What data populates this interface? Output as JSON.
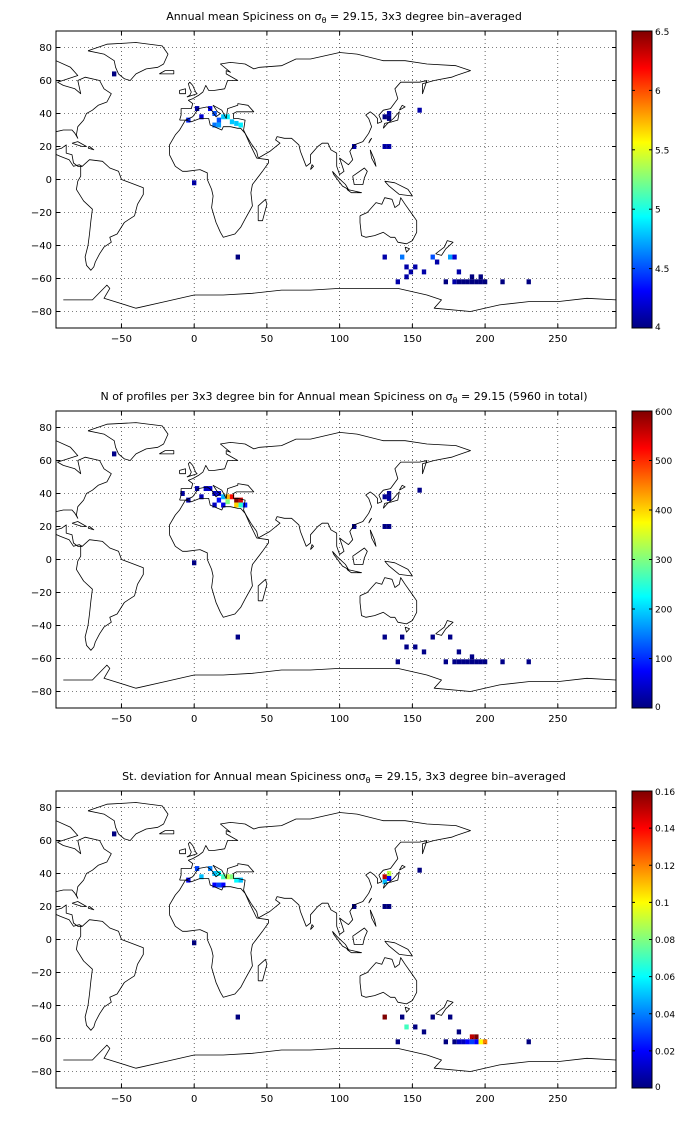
{
  "chart_data": [
    {
      "type": "heatmap",
      "title_prefix": "Annual mean Spiciness on ",
      "title_suffix": " = 29.15, 3x3 degree bin–averaged",
      "title_sym": "σ",
      "title_sub": "θ",
      "xlim": [
        -95,
        290
      ],
      "ylim": [
        -90,
        90
      ],
      "xticks": [
        -50,
        0,
        50,
        100,
        150,
        200,
        250
      ],
      "yticks": [
        80,
        60,
        40,
        20,
        0,
        -20,
        -40,
        -60,
        -80
      ],
      "grid": true,
      "colorbar": {
        "min": 4,
        "max": 6.5,
        "ticks": [
          4,
          4.5,
          5,
          5.5,
          6,
          6.5
        ],
        "tick_labels": [
          "4",
          "4.5",
          "5",
          "5.5",
          "6",
          "6.5"
        ]
      },
      "points": [
        {
          "lon": -55,
          "lat": 64,
          "v": 4.0
        },
        {
          "lon": 2,
          "lat": 43,
          "v": 4.1
        },
        {
          "lon": -4,
          "lat": 36,
          "v": 4.4
        },
        {
          "lon": 5,
          "lat": 38,
          "v": 4.2
        },
        {
          "lon": 11,
          "lat": 43,
          "v": 4.3
        },
        {
          "lon": 14,
          "lat": 40,
          "v": 4.5
        },
        {
          "lon": 17,
          "lat": 36,
          "v": 4.5
        },
        {
          "lon": 20,
          "lat": 38,
          "v": 4.8
        },
        {
          "lon": 23,
          "lat": 38,
          "v": 4.9
        },
        {
          "lon": 26,
          "lat": 35,
          "v": 4.8
        },
        {
          "lon": 29,
          "lat": 34,
          "v": 4.8
        },
        {
          "lon": 32,
          "lat": 33,
          "v": 4.9
        },
        {
          "lon": 17,
          "lat": 33,
          "v": 4.7
        },
        {
          "lon": 14,
          "lat": 33,
          "v": 4.6
        },
        {
          "lon": 0,
          "lat": -2,
          "v": 4.1
        },
        {
          "lon": 30,
          "lat": -47,
          "v": 4.0
        },
        {
          "lon": 131,
          "lat": 38,
          "v": 4.0
        },
        {
          "lon": 134,
          "lat": 40,
          "v": 4.1
        },
        {
          "lon": 134,
          "lat": 37,
          "v": 4.0
        },
        {
          "lon": 155,
          "lat": 42,
          "v": 4.1
        },
        {
          "lon": 110,
          "lat": 20,
          "v": 4.1
        },
        {
          "lon": 131,
          "lat": 20,
          "v": 4.1
        },
        {
          "lon": 134,
          "lat": 20,
          "v": 4.1
        },
        {
          "lon": 131,
          "lat": -47,
          "v": 4.1
        },
        {
          "lon": 143,
          "lat": -47,
          "v": 4.6
        },
        {
          "lon": 164,
          "lat": -47,
          "v": 4.5
        },
        {
          "lon": 167,
          "lat": -50,
          "v": 4.1
        },
        {
          "lon": 176,
          "lat": -47,
          "v": 4.7
        },
        {
          "lon": 179,
          "lat": -47,
          "v": 4.2
        },
        {
          "lon": 146,
          "lat": -53,
          "v": 4.1
        },
        {
          "lon": 152,
          "lat": -53,
          "v": 4.1
        },
        {
          "lon": 158,
          "lat": -56,
          "v": 4.1
        },
        {
          "lon": 149,
          "lat": -56,
          "v": 4.1
        },
        {
          "lon": 182,
          "lat": -56,
          "v": 4.1
        },
        {
          "lon": 191,
          "lat": -59,
          "v": 4.0
        },
        {
          "lon": 197,
          "lat": -59,
          "v": 4.0
        },
        {
          "lon": 140,
          "lat": -62,
          "v": 4.1
        },
        {
          "lon": 146,
          "lat": -59,
          "v": 4.1
        },
        {
          "lon": 173,
          "lat": -62,
          "v": 4.0
        },
        {
          "lon": 179,
          "lat": -62,
          "v": 4.1
        },
        {
          "lon": 182,
          "lat": -62,
          "v": 4.0
        },
        {
          "lon": 185,
          "lat": -62,
          "v": 4.0
        },
        {
          "lon": 188,
          "lat": -62,
          "v": 4.0
        },
        {
          "lon": 191,
          "lat": -62,
          "v": 4.0
        },
        {
          "lon": 194,
          "lat": -62,
          "v": 4.0
        },
        {
          "lon": 197,
          "lat": -62,
          "v": 4.0
        },
        {
          "lon": 200,
          "lat": -62,
          "v": 4.0
        },
        {
          "lon": 212,
          "lat": -62,
          "v": 4.0
        },
        {
          "lon": 230,
          "lat": -62,
          "v": 4.0
        }
      ]
    },
    {
      "type": "heatmap",
      "title_prefix": "N of profiles per 3x3 degree bin for Annual mean Spiciness on ",
      "title_suffix": " = 29.15 (5960 in total)",
      "title_sym": "σ",
      "title_sub": "θ",
      "xlim": [
        -95,
        290
      ],
      "ylim": [
        -90,
        90
      ],
      "xticks": [
        -50,
        0,
        50,
        100,
        150,
        200,
        250
      ],
      "yticks": [
        80,
        60,
        40,
        20,
        0,
        -20,
        -40,
        -60,
        -80
      ],
      "grid": true,
      "colorbar": {
        "min": 0,
        "max": 600,
        "ticks": [
          0,
          100,
          200,
          300,
          400,
          500,
          600
        ],
        "tick_labels": [
          "0",
          "100",
          "200",
          "300",
          "400",
          "500",
          "600"
        ]
      },
      "points": [
        {
          "lon": -55,
          "lat": 64,
          "v": 5
        },
        {
          "lon": -8,
          "lat": 40,
          "v": 20
        },
        {
          "lon": -4,
          "lat": 36,
          "v": 30
        },
        {
          "lon": 2,
          "lat": 43,
          "v": 25
        },
        {
          "lon": 5,
          "lat": 38,
          "v": 30
        },
        {
          "lon": 8,
          "lat": 43,
          "v": 40
        },
        {
          "lon": 11,
          "lat": 43,
          "v": 50
        },
        {
          "lon": 14,
          "lat": 40,
          "v": 40
        },
        {
          "lon": 17,
          "lat": 40,
          "v": 60
        },
        {
          "lon": 17,
          "lat": 36,
          "v": 80
        },
        {
          "lon": 20,
          "lat": 38,
          "v": 180
        },
        {
          "lon": 23,
          "lat": 38,
          "v": 420
        },
        {
          "lon": 26,
          "lat": 38,
          "v": 520
        },
        {
          "lon": 29,
          "lat": 36,
          "v": 600
        },
        {
          "lon": 32,
          "lat": 36,
          "v": 550
        },
        {
          "lon": 23,
          "lat": 35,
          "v": 300
        },
        {
          "lon": 29,
          "lat": 33,
          "v": 400
        },
        {
          "lon": 32,
          "lat": 33,
          "v": 250
        },
        {
          "lon": 35,
          "lat": 33,
          "v": 90
        },
        {
          "lon": 20,
          "lat": 33,
          "v": 60
        },
        {
          "lon": 14,
          "lat": 33,
          "v": 40
        },
        {
          "lon": 0,
          "lat": -2,
          "v": 5
        },
        {
          "lon": 30,
          "lat": -47,
          "v": 5
        },
        {
          "lon": 131,
          "lat": 38,
          "v": 10
        },
        {
          "lon": 134,
          "lat": 40,
          "v": 15
        },
        {
          "lon": 134,
          "lat": 37,
          "v": 20
        },
        {
          "lon": 155,
          "lat": 42,
          "v": 5
        },
        {
          "lon": 110,
          "lat": 20,
          "v": 5
        },
        {
          "lon": 131,
          "lat": 20,
          "v": 5
        },
        {
          "lon": 134,
          "lat": 20,
          "v": 5
        },
        {
          "lon": 131,
          "lat": -47,
          "v": 5
        },
        {
          "lon": 143,
          "lat": -47,
          "v": 5
        },
        {
          "lon": 164,
          "lat": -47,
          "v": 5
        },
        {
          "lon": 176,
          "lat": -47,
          "v": 5
        },
        {
          "lon": 146,
          "lat": -53,
          "v": 5
        },
        {
          "lon": 152,
          "lat": -53,
          "v": 5
        },
        {
          "lon": 158,
          "lat": -56,
          "v": 5
        },
        {
          "lon": 182,
          "lat": -56,
          "v": 5
        },
        {
          "lon": 191,
          "lat": -59,
          "v": 5
        },
        {
          "lon": 140,
          "lat": -62,
          "v": 5
        },
        {
          "lon": 173,
          "lat": -62,
          "v": 5
        },
        {
          "lon": 179,
          "lat": -62,
          "v": 5
        },
        {
          "lon": 182,
          "lat": -62,
          "v": 5
        },
        {
          "lon": 185,
          "lat": -62,
          "v": 5
        },
        {
          "lon": 188,
          "lat": -62,
          "v": 5
        },
        {
          "lon": 191,
          "lat": -62,
          "v": 5
        },
        {
          "lon": 194,
          "lat": -62,
          "v": 5
        },
        {
          "lon": 197,
          "lat": -62,
          "v": 5
        },
        {
          "lon": 200,
          "lat": -62,
          "v": 5
        },
        {
          "lon": 212,
          "lat": -62,
          "v": 5
        },
        {
          "lon": 230,
          "lat": -62,
          "v": 5
        }
      ]
    },
    {
      "type": "heatmap",
      "title_prefix": "St. deviation for Annual mean Spiciness on",
      "title_suffix": " = 29.15, 3x3 degree bin–averaged",
      "title_sym": "σ",
      "title_sub": "θ",
      "xlim": [
        -95,
        290
      ],
      "ylim": [
        -90,
        90
      ],
      "xticks": [
        -50,
        0,
        50,
        100,
        150,
        200,
        250
      ],
      "yticks": [
        80,
        60,
        40,
        20,
        0,
        -20,
        -40,
        -60,
        -80
      ],
      "grid": true,
      "colorbar": {
        "min": 0,
        "max": 0.16,
        "ticks": [
          0,
          0.02,
          0.04,
          0.06,
          0.08,
          0.1,
          0.12,
          0.14,
          0.16
        ],
        "tick_labels": [
          "0",
          "0.02",
          "0.04",
          "0.06",
          "0.08",
          "0.1",
          "0.12",
          "0.14",
          "0.16"
        ]
      },
      "points": [
        {
          "lon": -55,
          "lat": 64,
          "v": 0.0
        },
        {
          "lon": -4,
          "lat": 36,
          "v": 0.02
        },
        {
          "lon": 2,
          "lat": 43,
          "v": 0.03
        },
        {
          "lon": 5,
          "lat": 38,
          "v": 0.05
        },
        {
          "lon": 11,
          "lat": 43,
          "v": 0.04
        },
        {
          "lon": 14,
          "lat": 40,
          "v": 0.05
        },
        {
          "lon": 17,
          "lat": 40,
          "v": 0.06
        },
        {
          "lon": 20,
          "lat": 38,
          "v": 0.07
        },
        {
          "lon": 23,
          "lat": 38,
          "v": 0.09
        },
        {
          "lon": 26,
          "lat": 38,
          "v": 0.08
        },
        {
          "lon": 29,
          "lat": 36,
          "v": 0.06
        },
        {
          "lon": 32,
          "lat": 36,
          "v": 0.05
        },
        {
          "lon": 17,
          "lat": 33,
          "v": 0.03
        },
        {
          "lon": 14,
          "lat": 33,
          "v": 0.02
        },
        {
          "lon": 20,
          "lat": 33,
          "v": 0.02
        },
        {
          "lon": 0,
          "lat": -2,
          "v": 0.0
        },
        {
          "lon": 30,
          "lat": -47,
          "v": 0.0
        },
        {
          "lon": 131,
          "lat": 38,
          "v": 0.15
        },
        {
          "lon": 134,
          "lat": 40,
          "v": 0.09
        },
        {
          "lon": 131,
          "lat": 35,
          "v": 0.05
        },
        {
          "lon": 134,
          "lat": 37,
          "v": 0.02
        },
        {
          "lon": 155,
          "lat": 42,
          "v": 0.0
        },
        {
          "lon": 110,
          "lat": 20,
          "v": 0.0
        },
        {
          "lon": 131,
          "lat": 20,
          "v": 0.0
        },
        {
          "lon": 134,
          "lat": 20,
          "v": 0.0
        },
        {
          "lon": 131,
          "lat": -47,
          "v": 0.16
        },
        {
          "lon": 143,
          "lat": -47,
          "v": 0.0
        },
        {
          "lon": 164,
          "lat": -47,
          "v": 0.0
        },
        {
          "lon": 176,
          "lat": -47,
          "v": 0.0
        },
        {
          "lon": 146,
          "lat": -53,
          "v": 0.07
        },
        {
          "lon": 152,
          "lat": -53,
          "v": 0.0
        },
        {
          "lon": 158,
          "lat": -56,
          "v": 0.0
        },
        {
          "lon": 182,
          "lat": -56,
          "v": 0.0
        },
        {
          "lon": 191,
          "lat": -59,
          "v": 0.15
        },
        {
          "lon": 194,
          "lat": -59,
          "v": 0.16
        },
        {
          "lon": 140,
          "lat": -62,
          "v": 0.0
        },
        {
          "lon": 173,
          "lat": -62,
          "v": 0.0
        },
        {
          "lon": 179,
          "lat": -62,
          "v": 0.0
        },
        {
          "lon": 182,
          "lat": -62,
          "v": 0.01
        },
        {
          "lon": 185,
          "lat": -62,
          "v": 0.01
        },
        {
          "lon": 188,
          "lat": -62,
          "v": 0.02
        },
        {
          "lon": 191,
          "lat": -62,
          "v": 0.03
        },
        {
          "lon": 194,
          "lat": -62,
          "v": 0.02
        },
        {
          "lon": 197,
          "lat": -62,
          "v": 0.1
        },
        {
          "lon": 200,
          "lat": -62,
          "v": 0.12
        },
        {
          "lon": 230,
          "lat": -62,
          "v": 0.0
        }
      ]
    }
  ]
}
